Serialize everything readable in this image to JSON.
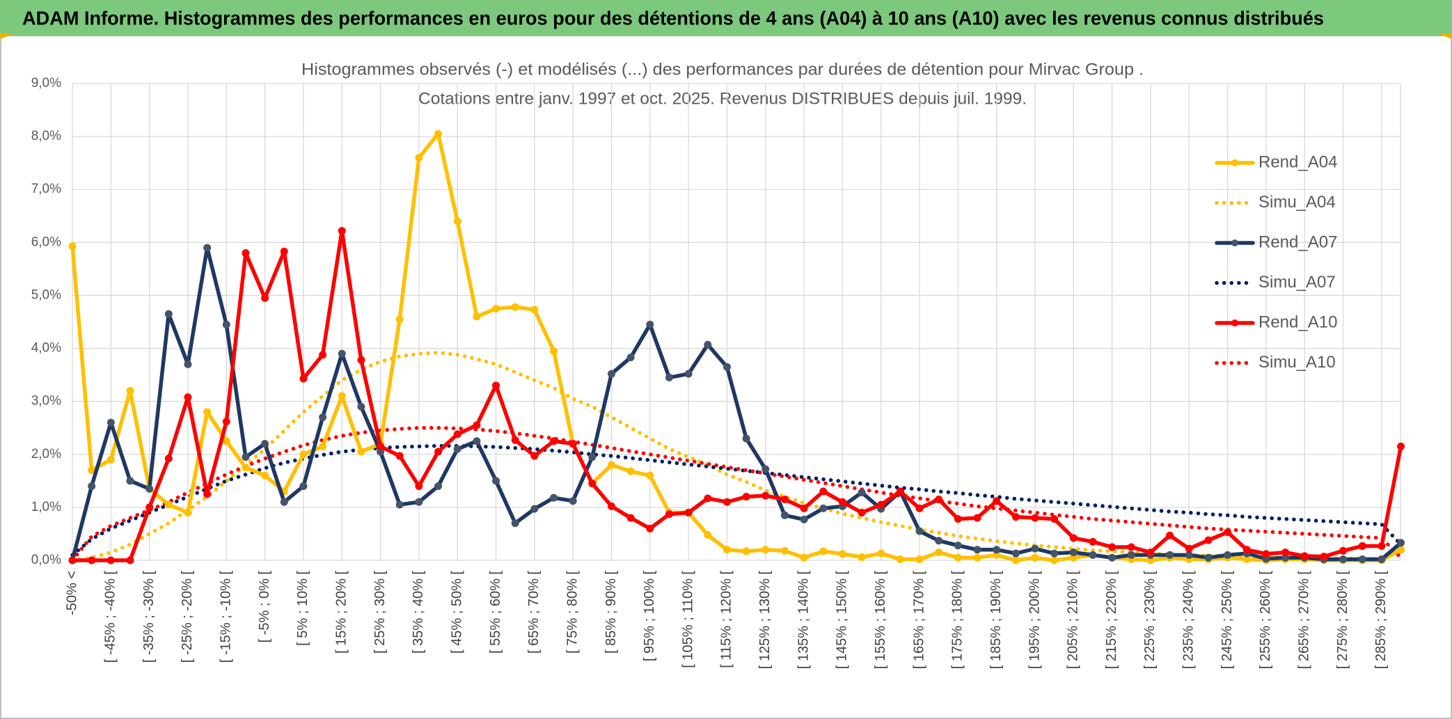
{
  "chart_data": {
    "type": "line",
    "title": "ADAM Informe. Histogrammes des performances en euros pour des détentions de 4 ans (A04) à 10 ans (A10) avec les revenus connus distribués",
    "subtitle": [
      "Histogrammes observés (-) et modélisés (...) des performances par durées de détention pour Mirvac Group .",
      "Cotations entre janv. 1997 et oct. 2025. Revenus DISTRIBUES depuis juil. 1999."
    ],
    "categories": [
      "-50% <",
      null,
      "[ -45% ; -40% [",
      null,
      "[ -35% ; -30% [",
      null,
      "[ -25% ; -20% [",
      null,
      "[ -15% ; -10% [",
      null,
      "[ -5% ; 0% [",
      null,
      "[ 5% ; 10% [",
      null,
      "[ 15% ; 20% [",
      null,
      "[ 25% ; 30% [",
      null,
      "[ 35% ; 40% [",
      null,
      "[ 45% ; 50% [",
      null,
      "[ 55% ; 60% [",
      null,
      "[ 65% ; 70% [",
      null,
      "[ 75% ; 80% [",
      null,
      "[ 85% ; 90% [",
      null,
      "[ 95% ; 100% [",
      null,
      "[ 105% ; 110% [",
      null,
      "[ 115% ; 120% [",
      null,
      "[ 125% ; 130% [",
      null,
      "[ 135% ; 140% [",
      null,
      "[ 145% ; 150% [",
      null,
      "[ 155% ; 160% [",
      null,
      "[ 165% ; 170% [",
      null,
      "[ 175% ; 180% [",
      null,
      "[ 185% ; 190% [",
      null,
      "[ 195% ; 200% [",
      null,
      "[ 205% ; 210% [",
      null,
      "[ 215% ; 220% [",
      null,
      "[ 225% ; 230% [",
      null,
      "[ 235% ; 240% [",
      null,
      "[ 245% ; 250% [",
      null,
      "[ 255% ; 260% [",
      null,
      "[ 265% ; 270% [",
      null,
      "[ 275% ; 280% [",
      null,
      "[ 285% ; 290% [",
      null
    ],
    "ylim": [
      0,
      9
    ],
    "yticks": [
      {
        "value": 0,
        "label": "0,0%"
      },
      {
        "value": 1,
        "label": "1,0%"
      },
      {
        "value": 2,
        "label": "2,0%"
      },
      {
        "value": 3,
        "label": "3,0%"
      },
      {
        "value": 4,
        "label": "4,0%"
      },
      {
        "value": 5,
        "label": "5,0%"
      },
      {
        "value": 6,
        "label": "6,0%"
      },
      {
        "value": 7,
        "label": "7,0%"
      },
      {
        "value": 8,
        "label": "8,0%"
      },
      {
        "value": 9,
        "label": "9,0%"
      }
    ],
    "grid": true,
    "legend": "right",
    "series": [
      {
        "name": "Rend_A04",
        "color": "#FFC000",
        "dash": "solid",
        "markers": true,
        "marker_color": "#FFC000",
        "values": [
          5.93,
          1.7,
          1.9,
          3.2,
          1.35,
          1.05,
          0.9,
          2.8,
          2.25,
          1.75,
          1.6,
          1.3,
          2.0,
          2.15,
          3.1,
          2.05,
          2.2,
          4.55,
          7.6,
          8.05,
          6.4,
          4.6,
          4.75,
          4.78,
          4.73,
          3.95,
          2.2,
          1.45,
          1.8,
          1.68,
          1.6,
          0.9,
          0.9,
          0.48,
          0.2,
          0.17,
          0.2,
          0.18,
          0.05,
          0.17,
          0.12,
          0.06,
          0.13,
          0.02,
          0.02,
          0.15,
          0.05,
          0.05,
          0.1,
          0,
          0.05,
          0,
          0.05,
          0.1,
          0.05,
          0.02,
          0,
          0.05,
          0.02,
          0.02,
          0.05,
          0.02,
          0,
          0.02,
          0.02,
          0,
          0,
          0,
          0,
          0.2
        ]
      },
      {
        "name": "Simu_A04",
        "color": "#FFC000",
        "dash": "dotted",
        "markers": false,
        "values": [
          0,
          0.05,
          0.15,
          0.3,
          0.5,
          0.7,
          0.95,
          1.2,
          1.5,
          1.8,
          2.1,
          2.45,
          2.8,
          3.1,
          3.4,
          3.6,
          3.75,
          3.85,
          3.9,
          3.92,
          3.88,
          3.8,
          3.7,
          3.55,
          3.4,
          3.25,
          3.05,
          2.9,
          2.7,
          2.5,
          2.3,
          2.1,
          1.95,
          1.8,
          1.62,
          1.48,
          1.32,
          1.2,
          1.08,
          0.98,
          0.88,
          0.8,
          0.72,
          0.65,
          0.58,
          0.52,
          0.46,
          0.41,
          0.36,
          0.32,
          0.28,
          0.25,
          0.22,
          0.19,
          0.17,
          0.15,
          0.13,
          0.11,
          0.1,
          0.09,
          0.08,
          0.07,
          0.06,
          0.05,
          0.05,
          0.04,
          0.04,
          0.03,
          0.03,
          0.2
        ]
      },
      {
        "name": "Rend_A07",
        "color": "#1F3864",
        "dash": "solid",
        "markers": true,
        "marker_color": "#44546A",
        "values": [
          0,
          1.4,
          2.6,
          1.5,
          1.35,
          4.65,
          3.7,
          5.9,
          4.45,
          1.95,
          2.2,
          1.1,
          1.4,
          2.7,
          3.9,
          2.9,
          2.05,
          1.05,
          1.1,
          1.4,
          2.1,
          2.25,
          1.5,
          0.7,
          0.97,
          1.18,
          1.12,
          1.95,
          3.52,
          3.83,
          4.45,
          3.45,
          3.52,
          4.07,
          3.65,
          2.3,
          1.72,
          0.85,
          0.77,
          0.98,
          1.02,
          1.28,
          0.97,
          1.3,
          0.55,
          0.37,
          0.28,
          0.2,
          0.2,
          0.13,
          0.22,
          0.13,
          0.15,
          0.1,
          0.05,
          0.1,
          0.1,
          0.1,
          0.1,
          0.05,
          0.1,
          0.13,
          0.03,
          0.05,
          0.05,
          0.02,
          0.02,
          0.02,
          0.02,
          0.33
        ]
      },
      {
        "name": "Simu_A07",
        "color": "#002060",
        "dash": "dotted",
        "markers": false,
        "values": [
          0.1,
          0.4,
          0.6,
          0.75,
          0.9,
          1.05,
          1.2,
          1.35,
          1.5,
          1.62,
          1.74,
          1.84,
          1.92,
          1.99,
          2.05,
          2.09,
          2.12,
          2.14,
          2.15,
          2.16,
          2.16,
          2.15,
          2.14,
          2.12,
          2.1,
          2.07,
          2.04,
          2.0,
          1.97,
          1.93,
          1.89,
          1.85,
          1.81,
          1.77,
          1.73,
          1.69,
          1.65,
          1.61,
          1.57,
          1.53,
          1.49,
          1.45,
          1.41,
          1.37,
          1.34,
          1.3,
          1.27,
          1.23,
          1.2,
          1.16,
          1.13,
          1.1,
          1.07,
          1.04,
          1.01,
          0.98,
          0.95,
          0.92,
          0.9,
          0.87,
          0.85,
          0.82,
          0.8,
          0.78,
          0.76,
          0.74,
          0.72,
          0.7,
          0.68,
          0.3
        ]
      },
      {
        "name": "Rend_A10",
        "color": "#FF0000",
        "dash": "solid",
        "markers": true,
        "marker_color": "#FF0000",
        "values": [
          0,
          0,
          0,
          0,
          1.0,
          1.92,
          3.08,
          1.25,
          2.62,
          5.8,
          4.95,
          5.83,
          3.43,
          3.88,
          6.22,
          3.78,
          2.15,
          1.97,
          1.4,
          2.05,
          2.38,
          2.55,
          3.3,
          2.27,
          1.97,
          2.25,
          2.2,
          1.45,
          1.02,
          0.8,
          0.6,
          0.87,
          0.9,
          1.17,
          1.1,
          1.2,
          1.22,
          1.15,
          0.98,
          1.3,
          1.1,
          0.9,
          1.05,
          1.3,
          0.98,
          1.15,
          0.78,
          0.8,
          1.12,
          0.82,
          0.8,
          0.78,
          0.42,
          0.35,
          0.25,
          0.25,
          0.15,
          0.47,
          0.22,
          0.38,
          0.53,
          0.2,
          0.12,
          0.15,
          0.08,
          0.07,
          0.18,
          0.27,
          0.27,
          2.15
        ]
      },
      {
        "name": "Simu_A10",
        "color": "#FF0000",
        "dash": "dotted",
        "markers": false,
        "values": [
          0,
          0.45,
          0.65,
          0.8,
          0.95,
          1.1,
          1.28,
          1.45,
          1.62,
          1.78,
          1.92,
          2.05,
          2.17,
          2.27,
          2.35,
          2.41,
          2.45,
          2.48,
          2.5,
          2.5,
          2.49,
          2.47,
          2.44,
          2.4,
          2.35,
          2.3,
          2.24,
          2.18,
          2.12,
          2.06,
          2.0,
          1.94,
          1.88,
          1.82,
          1.76,
          1.7,
          1.64,
          1.58,
          1.52,
          1.46,
          1.4,
          1.34,
          1.28,
          1.22,
          1.17,
          1.12,
          1.07,
          1.02,
          0.98,
          0.94,
          0.9,
          0.86,
          0.82,
          0.78,
          0.75,
          0.72,
          0.69,
          0.66,
          0.63,
          0.6,
          0.58,
          0.56,
          0.54,
          0.52,
          0.5,
          0.48,
          0.46,
          0.44,
          0.42,
          0.05
        ]
      }
    ]
  }
}
